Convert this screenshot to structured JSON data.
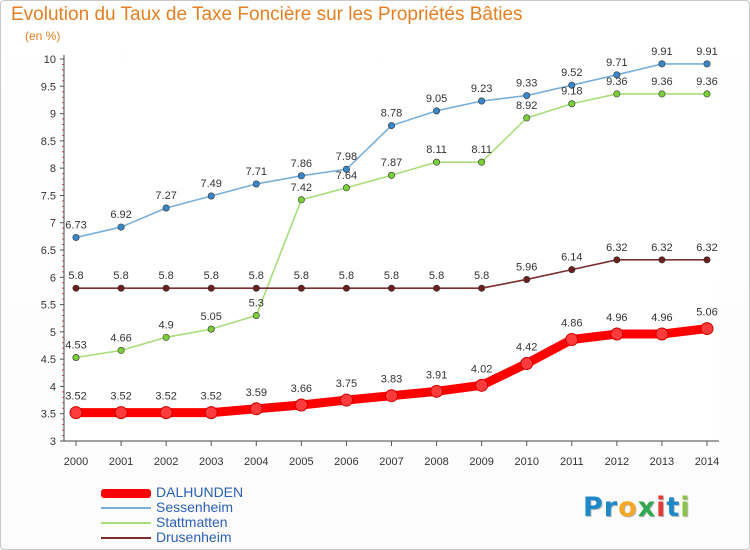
{
  "title": "Evolution du Taux de Taxe Foncière sur les Propriétés Bâties",
  "unit_label": "(en %)",
  "logo": {
    "text": "Proxiti",
    "letters": [
      {
        "ch": "P",
        "color": "#1e88c9"
      },
      {
        "ch": "r",
        "color": "#1e88c9"
      },
      {
        "ch": "o",
        "color": "#f5a623"
      },
      {
        "ch": "x",
        "color": "#2fa84f"
      },
      {
        "ch": "i",
        "color": "#e53935"
      },
      {
        "ch": "t",
        "color": "#1e88c9"
      },
      {
        "ch": "i",
        "color": "#8bc34a"
      }
    ]
  },
  "chart_data": {
    "type": "line",
    "title": "Evolution du Taux de Taxe Foncière sur les Propriétés Bâties",
    "ylabel": "(en %)",
    "xlabel": "",
    "x": [
      "2000",
      "2001",
      "2002",
      "2003",
      "2004",
      "2005",
      "2006",
      "2007",
      "2008",
      "2009",
      "2010",
      "2011",
      "2012",
      "2013",
      "2014"
    ],
    "ylim": [
      3,
      10
    ],
    "yticks": [
      "3",
      "3.5",
      "4",
      "4.5",
      "5",
      "5.5",
      "6",
      "6.5",
      "7",
      "7.5",
      "8",
      "8.5",
      "9",
      "9.5",
      "10"
    ],
    "legend_position": "bottom-left",
    "series": [
      {
        "name": "DALHUNDEN",
        "color": "#ff0000",
        "marker_color": "#ff3b3b",
        "highlight": true,
        "values": [
          3.52,
          3.52,
          3.52,
          3.52,
          3.59,
          3.66,
          3.75,
          3.83,
          3.91,
          4.02,
          4.42,
          4.86,
          4.96,
          4.96,
          5.06
        ],
        "labels": [
          "3.52",
          "3.52",
          "3.52",
          "3.52",
          "3.59",
          "3.66",
          "3.75",
          "3.83",
          "3.91",
          "4.02",
          "4.42",
          "4.86",
          "4.96",
          "4.96",
          "5.06"
        ]
      },
      {
        "name": "Sessenheim",
        "color": "#7aafd9",
        "marker_color": "#3a86c8",
        "highlight": false,
        "values": [
          6.73,
          6.92,
          7.27,
          7.49,
          7.71,
          7.86,
          7.98,
          8.78,
          9.05,
          9.23,
          9.33,
          9.52,
          9.71,
          9.91,
          9.91
        ],
        "labels": [
          "6.73",
          "6.92",
          "7.27",
          "7.49",
          "7.71",
          "7.86",
          "7.98",
          "8.78",
          "9.05",
          "9.23",
          "9.33",
          "9.52",
          "9.71",
          "9.91",
          "9.91"
        ]
      },
      {
        "name": "Stattmatten",
        "color": "#a8de7a",
        "marker_color": "#7ccd3a",
        "highlight": false,
        "values": [
          4.53,
          4.66,
          4.9,
          5.05,
          5.3,
          7.42,
          7.64,
          7.87,
          8.11,
          8.11,
          8.92,
          9.18,
          9.36,
          9.36,
          9.36
        ],
        "labels": [
          "4.53",
          "4.66",
          "4.9",
          "5.05",
          "5.3",
          "7.42",
          "7.64",
          "7.87",
          "8.11",
          "8.11",
          "8.92",
          "9.18",
          "9.36",
          "9.36",
          "9.36"
        ]
      },
      {
        "name": "Drusenheim",
        "color": "#7a3030",
        "marker_color": "#6b1f1f",
        "highlight": false,
        "values": [
          5.8,
          5.8,
          5.8,
          5.8,
          5.8,
          5.8,
          5.8,
          5.8,
          5.8,
          5.8,
          5.96,
          6.14,
          6.32,
          6.32,
          6.32
        ],
        "labels": [
          "5.8",
          "5.8",
          "5.8",
          "5.8",
          "5.8",
          "5.8",
          "5.8",
          "5.8",
          "5.8",
          "5.8",
          "5.96",
          "6.14",
          "6.32",
          "6.32",
          "6.32"
        ]
      }
    ]
  }
}
